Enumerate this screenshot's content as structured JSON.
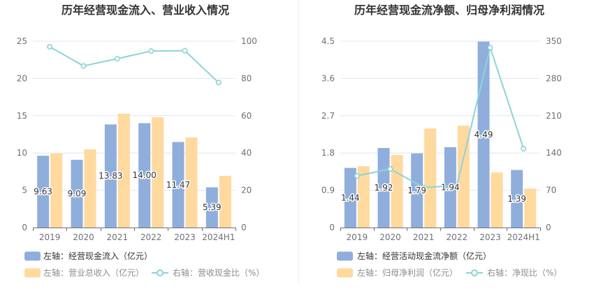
{
  "chart_data": [
    {
      "type": "bar",
      "title": "历年经营现金流入、营业收入情况",
      "categories": [
        "2019",
        "2020",
        "2021",
        "2022",
        "2023",
        "2024H1"
      ],
      "y_left": {
        "lim": [
          0,
          25
        ],
        "ticks": [
          "0",
          "5",
          "10",
          "15",
          "20",
          "25"
        ]
      },
      "y_right": {
        "lim": [
          0,
          100
        ],
        "ticks": [
          "0",
          "20",
          "40",
          "60",
          "80",
          "100"
        ]
      },
      "grid": true,
      "legend": "bottom-left",
      "series": [
        {
          "name": "左轴：经营现金流入（亿元）",
          "type": "bar",
          "axis": "left",
          "color": "#8faedc",
          "values": [
            9.63,
            9.09,
            13.83,
            14.0,
            11.47,
            5.39
          ],
          "data_labels": [
            "9.63",
            "9.09",
            "13.83",
            "14.00",
            "11.47",
            "5.39"
          ]
        },
        {
          "name": "左轴：营业总收入（亿元）",
          "type": "bar",
          "axis": "left",
          "color": "#ffd99e",
          "values": [
            9.92,
            10.49,
            15.27,
            14.79,
            12.09,
            6.93
          ]
        },
        {
          "name": "右轴：营收现金比（%）",
          "type": "line",
          "axis": "right",
          "color": "#8ed3d8",
          "values": [
            97.0,
            86.7,
            90.6,
            94.7,
            94.9,
            77.8
          ]
        }
      ]
    },
    {
      "type": "bar",
      "title": "历年经营现金流净额、归母净利润情况",
      "categories": [
        "2019",
        "2020",
        "2021",
        "2022",
        "2023",
        "2024H1"
      ],
      "y_left": {
        "lim": [
          0,
          4.5
        ],
        "ticks": [
          "0",
          "0.9",
          "1.8",
          "2.7",
          "3.6",
          "4.5"
        ]
      },
      "y_right": {
        "lim": [
          0,
          350
        ],
        "ticks": [
          "0",
          "70",
          "140",
          "210",
          "280",
          "350"
        ]
      },
      "grid": true,
      "legend": "bottom-left",
      "series": [
        {
          "name": "左轴：经营活动现金流净额（亿元）",
          "type": "bar",
          "axis": "left",
          "color": "#8faedc",
          "values": [
            1.44,
            1.92,
            1.79,
            1.94,
            4.49,
            1.39
          ],
          "data_labels": [
            "1.44",
            "1.92",
            "1.79",
            "1.94",
            "4.49",
            "1.39"
          ]
        },
        {
          "name": "左轴：归母净利润（亿元）",
          "type": "bar",
          "axis": "left",
          "color": "#ffd99e",
          "values": [
            1.48,
            1.75,
            2.39,
            2.46,
            1.33,
            0.94
          ]
        },
        {
          "name": "右轴：净现比（%）",
          "type": "line",
          "axis": "right",
          "color": "#8ed3d8",
          "values": [
            97,
            110,
            75,
            79,
            338,
            148
          ]
        }
      ]
    }
  ]
}
